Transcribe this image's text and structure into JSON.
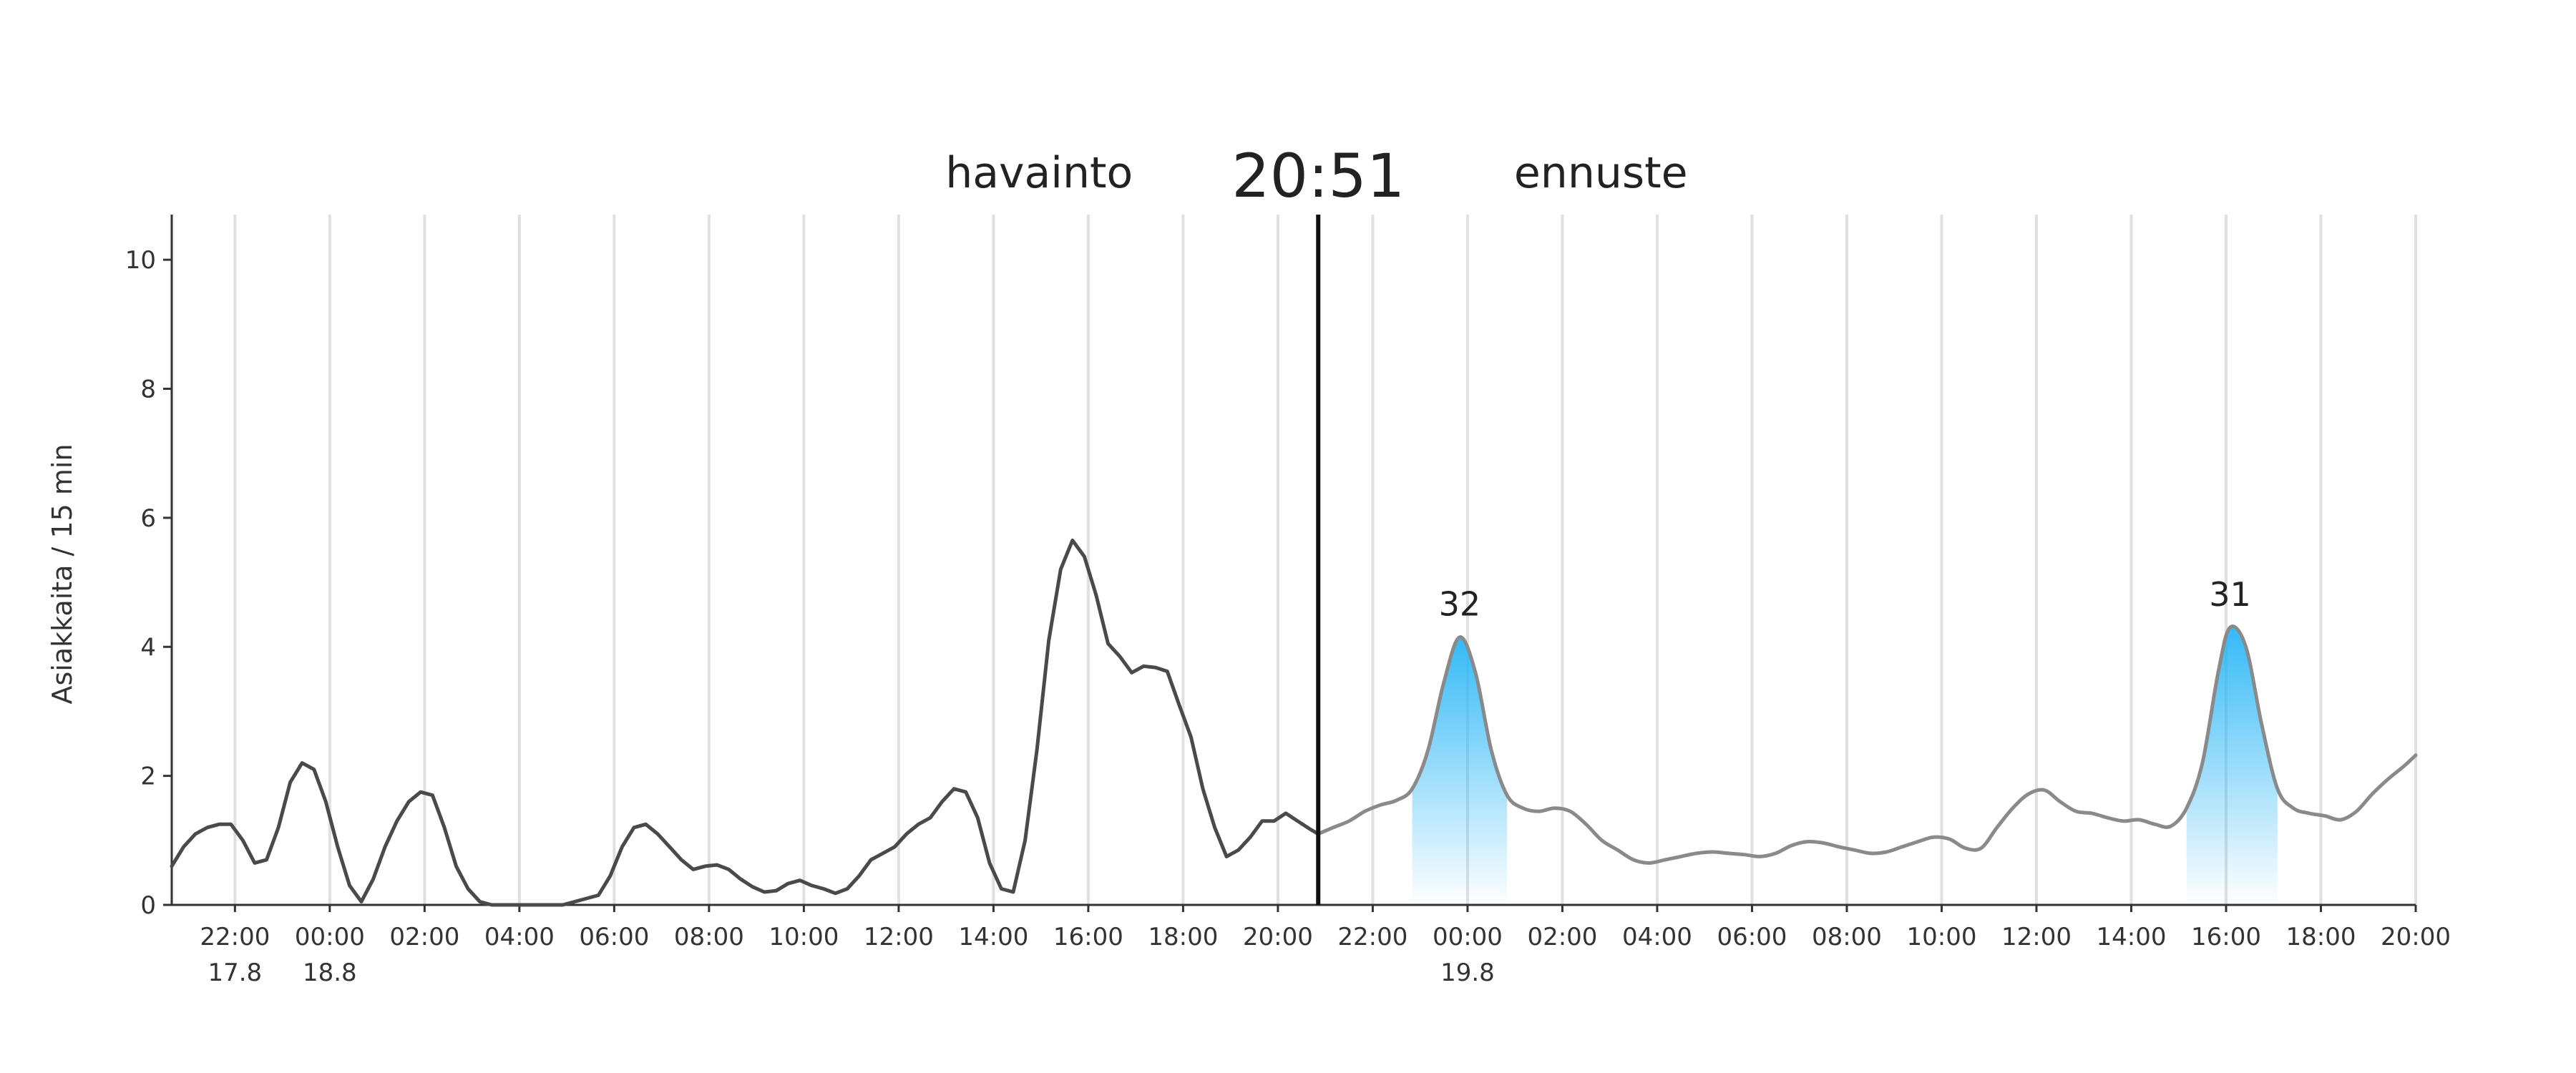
{
  "header": {
    "observed_label": "havainto",
    "current_time": "20:51",
    "forecast_label": "ennuste"
  },
  "chart_data": {
    "type": "line",
    "ylabel": "Asiakkaita / 15 min",
    "ylim": [
      0,
      10.7
    ],
    "yticks": [
      0,
      2,
      4,
      6,
      8,
      10
    ],
    "xlim": [
      "2023-08-17 20:40",
      "2023-08-19 20:00"
    ],
    "grid": "vertical",
    "now": "2023-08-18 20:51",
    "xticks": [
      {
        "t": "2023-08-17 22:00",
        "label": "22:00",
        "date": "17.8"
      },
      {
        "t": "2023-08-18 00:00",
        "label": "00:00",
        "date": "18.8"
      },
      {
        "t": "2023-08-18 02:00",
        "label": "02:00",
        "date": ""
      },
      {
        "t": "2023-08-18 04:00",
        "label": "04:00",
        "date": ""
      },
      {
        "t": "2023-08-18 06:00",
        "label": "06:00",
        "date": ""
      },
      {
        "t": "2023-08-18 08:00",
        "label": "08:00",
        "date": ""
      },
      {
        "t": "2023-08-18 10:00",
        "label": "10:00",
        "date": ""
      },
      {
        "t": "2023-08-18 12:00",
        "label": "12:00",
        "date": ""
      },
      {
        "t": "2023-08-18 14:00",
        "label": "14:00",
        "date": ""
      },
      {
        "t": "2023-08-18 16:00",
        "label": "16:00",
        "date": ""
      },
      {
        "t": "2023-08-18 18:00",
        "label": "18:00",
        "date": ""
      },
      {
        "t": "2023-08-18 20:00",
        "label": "20:00",
        "date": ""
      },
      {
        "t": "2023-08-18 22:00",
        "label": "22:00",
        "date": ""
      },
      {
        "t": "2023-08-19 00:00",
        "label": "00:00",
        "date": "19.8"
      },
      {
        "t": "2023-08-19 02:00",
        "label": "02:00",
        "date": ""
      },
      {
        "t": "2023-08-19 04:00",
        "label": "04:00",
        "date": ""
      },
      {
        "t": "2023-08-19 06:00",
        "label": "06:00",
        "date": ""
      },
      {
        "t": "2023-08-19 08:00",
        "label": "08:00",
        "date": ""
      },
      {
        "t": "2023-08-19 10:00",
        "label": "10:00",
        "date": ""
      },
      {
        "t": "2023-08-19 12:00",
        "label": "12:00",
        "date": ""
      },
      {
        "t": "2023-08-19 14:00",
        "label": "14:00",
        "date": ""
      },
      {
        "t": "2023-08-19 16:00",
        "label": "16:00",
        "date": ""
      },
      {
        "t": "2023-08-19 18:00",
        "label": "18:00",
        "date": ""
      },
      {
        "t": "2023-08-19 20:00",
        "label": "20:00",
        "date": ""
      }
    ],
    "series": [
      {
        "kind": "observed",
        "color": "#4a4a4a",
        "points": [
          [
            "2023-08-17 20:40",
            0.6
          ],
          [
            "2023-08-17 20:55",
            0.9
          ],
          [
            "2023-08-17 21:10",
            1.1
          ],
          [
            "2023-08-17 21:25",
            1.2
          ],
          [
            "2023-08-17 21:40",
            1.25
          ],
          [
            "2023-08-17 21:55",
            1.25
          ],
          [
            "2023-08-17 22:10",
            1.0
          ],
          [
            "2023-08-17 22:25",
            0.65
          ],
          [
            "2023-08-17 22:40",
            0.7
          ],
          [
            "2023-08-17 22:55",
            1.2
          ],
          [
            "2023-08-17 23:10",
            1.9
          ],
          [
            "2023-08-17 23:25",
            2.2
          ],
          [
            "2023-08-17 23:40",
            2.1
          ],
          [
            "2023-08-17 23:55",
            1.6
          ],
          [
            "2023-08-18 00:10",
            0.9
          ],
          [
            "2023-08-18 00:25",
            0.3
          ],
          [
            "2023-08-18 00:40",
            0.05
          ],
          [
            "2023-08-18 00:55",
            0.4
          ],
          [
            "2023-08-18 01:10",
            0.9
          ],
          [
            "2023-08-18 01:25",
            1.3
          ],
          [
            "2023-08-18 01:40",
            1.6
          ],
          [
            "2023-08-18 01:55",
            1.75
          ],
          [
            "2023-08-18 02:10",
            1.7
          ],
          [
            "2023-08-18 02:25",
            1.2
          ],
          [
            "2023-08-18 02:40",
            0.6
          ],
          [
            "2023-08-18 02:55",
            0.25
          ],
          [
            "2023-08-18 03:10",
            0.05
          ],
          [
            "2023-08-18 03:25",
            0.0
          ],
          [
            "2023-08-18 03:40",
            0.0
          ],
          [
            "2023-08-18 03:55",
            0.0
          ],
          [
            "2023-08-18 04:10",
            0.0
          ],
          [
            "2023-08-18 04:25",
            0.0
          ],
          [
            "2023-08-18 04:40",
            0.0
          ],
          [
            "2023-08-18 04:55",
            0.0
          ],
          [
            "2023-08-18 05:10",
            0.05
          ],
          [
            "2023-08-18 05:25",
            0.1
          ],
          [
            "2023-08-18 05:40",
            0.15
          ],
          [
            "2023-08-18 05:55",
            0.45
          ],
          [
            "2023-08-18 06:10",
            0.9
          ],
          [
            "2023-08-18 06:25",
            1.2
          ],
          [
            "2023-08-18 06:40",
            1.25
          ],
          [
            "2023-08-18 06:55",
            1.1
          ],
          [
            "2023-08-18 07:10",
            0.9
          ],
          [
            "2023-08-18 07:25",
            0.7
          ],
          [
            "2023-08-18 07:40",
            0.55
          ],
          [
            "2023-08-18 07:55",
            0.6
          ],
          [
            "2023-08-18 08:10",
            0.62
          ],
          [
            "2023-08-18 08:25",
            0.55
          ],
          [
            "2023-08-18 08:40",
            0.4
          ],
          [
            "2023-08-18 08:55",
            0.28
          ],
          [
            "2023-08-18 09:10",
            0.2
          ],
          [
            "2023-08-18 09:25",
            0.22
          ],
          [
            "2023-08-18 09:40",
            0.33
          ],
          [
            "2023-08-18 09:55",
            0.38
          ],
          [
            "2023-08-18 10:10",
            0.3
          ],
          [
            "2023-08-18 10:25",
            0.25
          ],
          [
            "2023-08-18 10:40",
            0.18
          ],
          [
            "2023-08-18 10:55",
            0.25
          ],
          [
            "2023-08-18 11:10",
            0.45
          ],
          [
            "2023-08-18 11:25",
            0.7
          ],
          [
            "2023-08-18 11:40",
            0.8
          ],
          [
            "2023-08-18 11:55",
            0.9
          ],
          [
            "2023-08-18 12:10",
            1.1
          ],
          [
            "2023-08-18 12:25",
            1.25
          ],
          [
            "2023-08-18 12:40",
            1.35
          ],
          [
            "2023-08-18 12:55",
            1.6
          ],
          [
            "2023-08-18 13:10",
            1.8
          ],
          [
            "2023-08-18 13:25",
            1.75
          ],
          [
            "2023-08-18 13:40",
            1.35
          ],
          [
            "2023-08-18 13:55",
            0.65
          ],
          [
            "2023-08-18 14:10",
            0.25
          ],
          [
            "2023-08-18 14:25",
            0.2
          ],
          [
            "2023-08-18 14:40",
            1.0
          ],
          [
            "2023-08-18 14:55",
            2.4
          ],
          [
            "2023-08-18 15:10",
            4.1
          ],
          [
            "2023-08-18 15:25",
            5.2
          ],
          [
            "2023-08-18 15:40",
            5.65
          ],
          [
            "2023-08-18 15:55",
            5.4
          ],
          [
            "2023-08-18 16:10",
            4.8
          ],
          [
            "2023-08-18 16:25",
            4.05
          ],
          [
            "2023-08-18 16:40",
            3.85
          ],
          [
            "2023-08-18 16:55",
            3.6
          ],
          [
            "2023-08-18 17:10",
            3.7
          ],
          [
            "2023-08-18 17:25",
            3.68
          ],
          [
            "2023-08-18 17:40",
            3.62
          ],
          [
            "2023-08-18 17:55",
            3.1
          ],
          [
            "2023-08-18 18:10",
            2.6
          ],
          [
            "2023-08-18 18:25",
            1.8
          ],
          [
            "2023-08-18 18:40",
            1.2
          ],
          [
            "2023-08-18 18:55",
            0.75
          ],
          [
            "2023-08-18 19:10",
            0.85
          ],
          [
            "2023-08-18 19:25",
            1.05
          ],
          [
            "2023-08-18 19:40",
            1.3
          ],
          [
            "2023-08-18 19:55",
            1.3
          ],
          [
            "2023-08-18 20:10",
            1.42
          ],
          [
            "2023-08-18 20:25",
            1.3
          ],
          [
            "2023-08-18 20:40",
            1.18
          ],
          [
            "2023-08-18 20:51",
            1.1
          ]
        ]
      },
      {
        "kind": "forecast",
        "color": "#8a8a8a",
        "points": [
          [
            "2023-08-18 20:51",
            1.1
          ],
          [
            "2023-08-18 21:10",
            1.2
          ],
          [
            "2023-08-18 21:30",
            1.3
          ],
          [
            "2023-08-18 21:50",
            1.45
          ],
          [
            "2023-08-18 22:10",
            1.55
          ],
          [
            "2023-08-18 22:30",
            1.62
          ],
          [
            "2023-08-18 22:50",
            1.8
          ],
          [
            "2023-08-18 23:10",
            2.4
          ],
          [
            "2023-08-18 23:30",
            3.45
          ],
          [
            "2023-08-18 23:50",
            4.15
          ],
          [
            "2023-08-19 00:10",
            3.6
          ],
          [
            "2023-08-19 00:30",
            2.4
          ],
          [
            "2023-08-19 00:50",
            1.7
          ],
          [
            "2023-08-19 01:10",
            1.5
          ],
          [
            "2023-08-19 01:30",
            1.45
          ],
          [
            "2023-08-19 01:50",
            1.5
          ],
          [
            "2023-08-19 02:10",
            1.45
          ],
          [
            "2023-08-19 02:30",
            1.25
          ],
          [
            "2023-08-19 02:50",
            1.0
          ],
          [
            "2023-08-19 03:10",
            0.85
          ],
          [
            "2023-08-19 03:30",
            0.7
          ],
          [
            "2023-08-19 03:50",
            0.65
          ],
          [
            "2023-08-19 04:10",
            0.7
          ],
          [
            "2023-08-19 04:30",
            0.75
          ],
          [
            "2023-08-19 04:50",
            0.8
          ],
          [
            "2023-08-19 05:10",
            0.82
          ],
          [
            "2023-08-19 05:30",
            0.8
          ],
          [
            "2023-08-19 05:50",
            0.78
          ],
          [
            "2023-08-19 06:10",
            0.75
          ],
          [
            "2023-08-19 06:30",
            0.8
          ],
          [
            "2023-08-19 06:50",
            0.92
          ],
          [
            "2023-08-19 07:10",
            0.98
          ],
          [
            "2023-08-19 07:30",
            0.96
          ],
          [
            "2023-08-19 07:50",
            0.9
          ],
          [
            "2023-08-19 08:10",
            0.85
          ],
          [
            "2023-08-19 08:30",
            0.8
          ],
          [
            "2023-08-19 08:50",
            0.82
          ],
          [
            "2023-08-19 09:10",
            0.9
          ],
          [
            "2023-08-19 09:30",
            0.98
          ],
          [
            "2023-08-19 09:50",
            1.05
          ],
          [
            "2023-08-19 10:10",
            1.02
          ],
          [
            "2023-08-19 10:30",
            0.88
          ],
          [
            "2023-08-19 10:50",
            0.88
          ],
          [
            "2023-08-19 11:10",
            1.2
          ],
          [
            "2023-08-19 11:30",
            1.5
          ],
          [
            "2023-08-19 11:50",
            1.72
          ],
          [
            "2023-08-19 12:10",
            1.78
          ],
          [
            "2023-08-19 12:30",
            1.6
          ],
          [
            "2023-08-19 12:50",
            1.45
          ],
          [
            "2023-08-19 13:10",
            1.42
          ],
          [
            "2023-08-19 13:30",
            1.35
          ],
          [
            "2023-08-19 13:50",
            1.3
          ],
          [
            "2023-08-19 14:10",
            1.32
          ],
          [
            "2023-08-19 14:30",
            1.25
          ],
          [
            "2023-08-19 14:50",
            1.22
          ],
          [
            "2023-08-19 15:10",
            1.5
          ],
          [
            "2023-08-19 15:30",
            2.2
          ],
          [
            "2023-08-19 15:50",
            3.6
          ],
          [
            "2023-08-19 16:05",
            4.3
          ],
          [
            "2023-08-19 16:25",
            4.0
          ],
          [
            "2023-08-19 16:45",
            2.8
          ],
          [
            "2023-08-19 17:05",
            1.8
          ],
          [
            "2023-08-19 17:25",
            1.5
          ],
          [
            "2023-08-19 17:45",
            1.42
          ],
          [
            "2023-08-19 18:05",
            1.38
          ],
          [
            "2023-08-19 18:25",
            1.32
          ],
          [
            "2023-08-19 18:45",
            1.45
          ],
          [
            "2023-08-19 19:05",
            1.72
          ],
          [
            "2023-08-19 19:25",
            1.95
          ],
          [
            "2023-08-19 19:45",
            2.15
          ],
          [
            "2023-08-19 20:00",
            2.32
          ]
        ]
      }
    ],
    "peaks": [
      {
        "label": "32",
        "t": "2023-08-18 23:50",
        "value": 4.15,
        "start": "2023-08-18 22:50",
        "end": "2023-08-19 00:50",
        "color": "#29b6f6"
      },
      {
        "label": "31",
        "t": "2023-08-19 16:05",
        "value": 4.3,
        "start": "2023-08-19 15:10",
        "end": "2023-08-19 17:05",
        "color": "#29b6f6"
      }
    ]
  }
}
